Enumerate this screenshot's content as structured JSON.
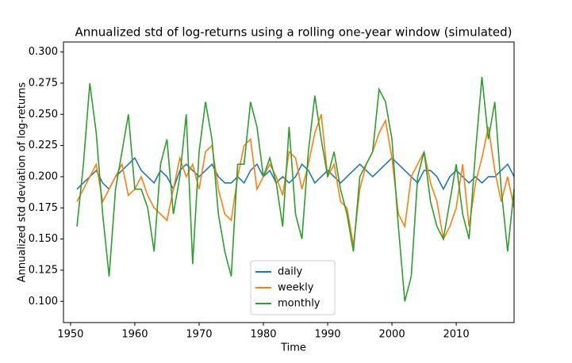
{
  "chart_data": {
    "type": "line",
    "title": "Annualized std of log-returns using a rolling one-year window (simulated)",
    "x_label": "Time",
    "y_label": "Annualized std deviation of log-returns",
    "x": [
      1951,
      1952,
      1953,
      1954,
      1955,
      1956,
      1957,
      1958,
      1959,
      1960,
      1961,
      1962,
      1963,
      1964,
      1965,
      1966,
      1967,
      1968,
      1969,
      1970,
      1971,
      1972,
      1973,
      1974,
      1975,
      1976,
      1977,
      1978,
      1979,
      1980,
      1981,
      1982,
      1983,
      1984,
      1985,
      1986,
      1987,
      1988,
      1989,
      1990,
      1991,
      1992,
      1993,
      1994,
      1995,
      1996,
      1997,
      1998,
      1999,
      2000,
      2001,
      2002,
      2003,
      2004,
      2005,
      2006,
      2007,
      2008,
      2009,
      2010,
      2011,
      2012,
      2013,
      2014,
      2015,
      2016,
      2017,
      2018,
      2019
    ],
    "series": [
      {
        "name": "daily",
        "color": "#1f77b4",
        "values": [
          0.19,
          0.195,
          0.2,
          0.205,
          0.195,
          0.19,
          0.2,
          0.205,
          0.21,
          0.215,
          0.205,
          0.2,
          0.195,
          0.205,
          0.2,
          0.19,
          0.205,
          0.21,
          0.205,
          0.2,
          0.205,
          0.21,
          0.2,
          0.195,
          0.195,
          0.2,
          0.195,
          0.205,
          0.21,
          0.2,
          0.205,
          0.195,
          0.2,
          0.195,
          0.2,
          0.21,
          0.205,
          0.195,
          0.2,
          0.205,
          0.2,
          0.195,
          0.2,
          0.205,
          0.21,
          0.205,
          0.2,
          0.205,
          0.21,
          0.215,
          0.21,
          0.205,
          0.2,
          0.195,
          0.205,
          0.205,
          0.2,
          0.19,
          0.2,
          0.205,
          0.2,
          0.195,
          0.2,
          0.195,
          0.2,
          0.2,
          0.205,
          0.21,
          0.2
        ]
      },
      {
        "name": "weekly",
        "color": "#ff7f0e",
        "values": [
          0.18,
          0.19,
          0.2,
          0.21,
          0.18,
          0.19,
          0.2,
          0.21,
          0.185,
          0.19,
          0.2,
          0.185,
          0.175,
          0.17,
          0.165,
          0.19,
          0.215,
          0.2,
          0.21,
          0.19,
          0.22,
          0.225,
          0.19,
          0.17,
          0.165,
          0.2,
          0.225,
          0.23,
          0.19,
          0.2,
          0.21,
          0.2,
          0.185,
          0.22,
          0.215,
          0.19,
          0.21,
          0.235,
          0.25,
          0.2,
          0.21,
          0.18,
          0.175,
          0.145,
          0.19,
          0.21,
          0.22,
          0.235,
          0.245,
          0.215,
          0.17,
          0.16,
          0.2,
          0.21,
          0.22,
          0.195,
          0.18,
          0.15,
          0.16,
          0.175,
          0.21,
          0.16,
          0.195,
          0.215,
          0.24,
          0.205,
          0.18,
          0.2,
          0.175
        ]
      },
      {
        "name": "monthly",
        "color": "#2ca02c",
        "values": [
          0.16,
          0.21,
          0.275,
          0.235,
          0.17,
          0.12,
          0.19,
          0.22,
          0.25,
          0.19,
          0.19,
          0.175,
          0.14,
          0.21,
          0.23,
          0.17,
          0.2,
          0.25,
          0.13,
          0.22,
          0.26,
          0.23,
          0.17,
          0.14,
          0.12,
          0.21,
          0.21,
          0.26,
          0.24,
          0.2,
          0.215,
          0.195,
          0.16,
          0.24,
          0.17,
          0.15,
          0.22,
          0.265,
          0.23,
          0.2,
          0.22,
          0.19,
          0.17,
          0.14,
          0.2,
          0.21,
          0.22,
          0.27,
          0.26,
          0.23,
          0.16,
          0.1,
          0.12,
          0.2,
          0.22,
          0.18,
          0.16,
          0.15,
          0.18,
          0.21,
          0.17,
          0.15,
          0.22,
          0.28,
          0.23,
          0.26,
          0.19,
          0.14,
          0.19
        ]
      }
    ],
    "xlim": [
      1948.9,
      2019
    ],
    "ylim": [
      0.083,
      0.308
    ],
    "xticks": [
      1950,
      1960,
      1970,
      1980,
      1990,
      2000,
      2010
    ],
    "yticks": [
      {
        "value": 0.1,
        "label": "0.100"
      },
      0.125,
      {
        "value": 0.15,
        "label": "0.150"
      },
      0.175,
      {
        "value": 0.2,
        "label": "0.200"
      },
      0.225,
      {
        "value": 0.25,
        "label": "0.250"
      },
      0.275,
      {
        "value": 0.3,
        "label": "0.300"
      }
    ],
    "legend": "lower center"
  }
}
